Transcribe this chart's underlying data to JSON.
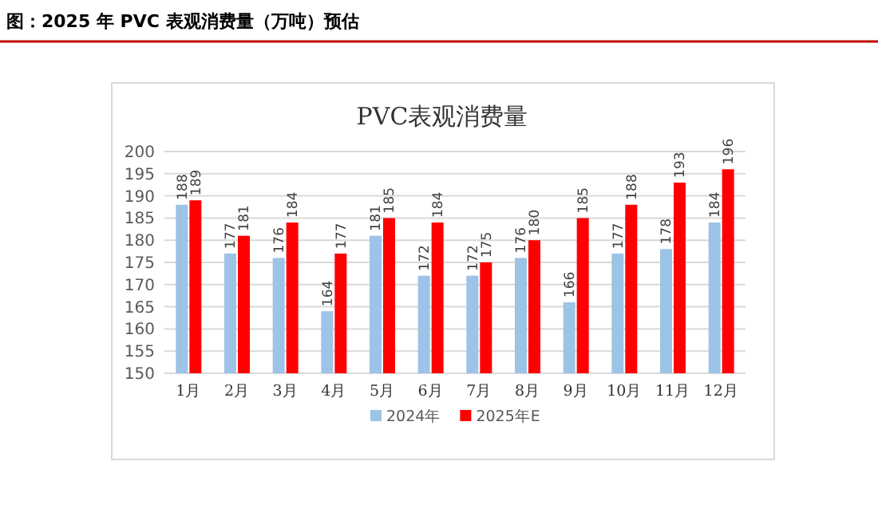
{
  "chart_data": {
    "type": "bar",
    "title": "图：2025 年 PVC 表观消费量（万吨）预估",
    "subtitle": "PVC表观消费量",
    "categories": [
      "1月",
      "2月",
      "3月",
      "4月",
      "5月",
      "6月",
      "7月",
      "8月",
      "9月",
      "10月",
      "11月",
      "12月"
    ],
    "series": [
      {
        "name": "2024年",
        "color": "#9dc3e6",
        "values": [
          188,
          177,
          176,
          164,
          181,
          172,
          172,
          176,
          166,
          177,
          178,
          184
        ]
      },
      {
        "name": "2025年E",
        "color": "#ff0000",
        "values": [
          189,
          181,
          184,
          177,
          185,
          184,
          175,
          180,
          185,
          188,
          193,
          196
        ]
      }
    ],
    "ylim": [
      150,
      200
    ],
    "yticks": [
      150,
      155,
      160,
      165,
      170,
      175,
      180,
      185,
      190,
      195,
      200
    ],
    "grid": "y",
    "legend": "bottom",
    "data_labels": true
  }
}
